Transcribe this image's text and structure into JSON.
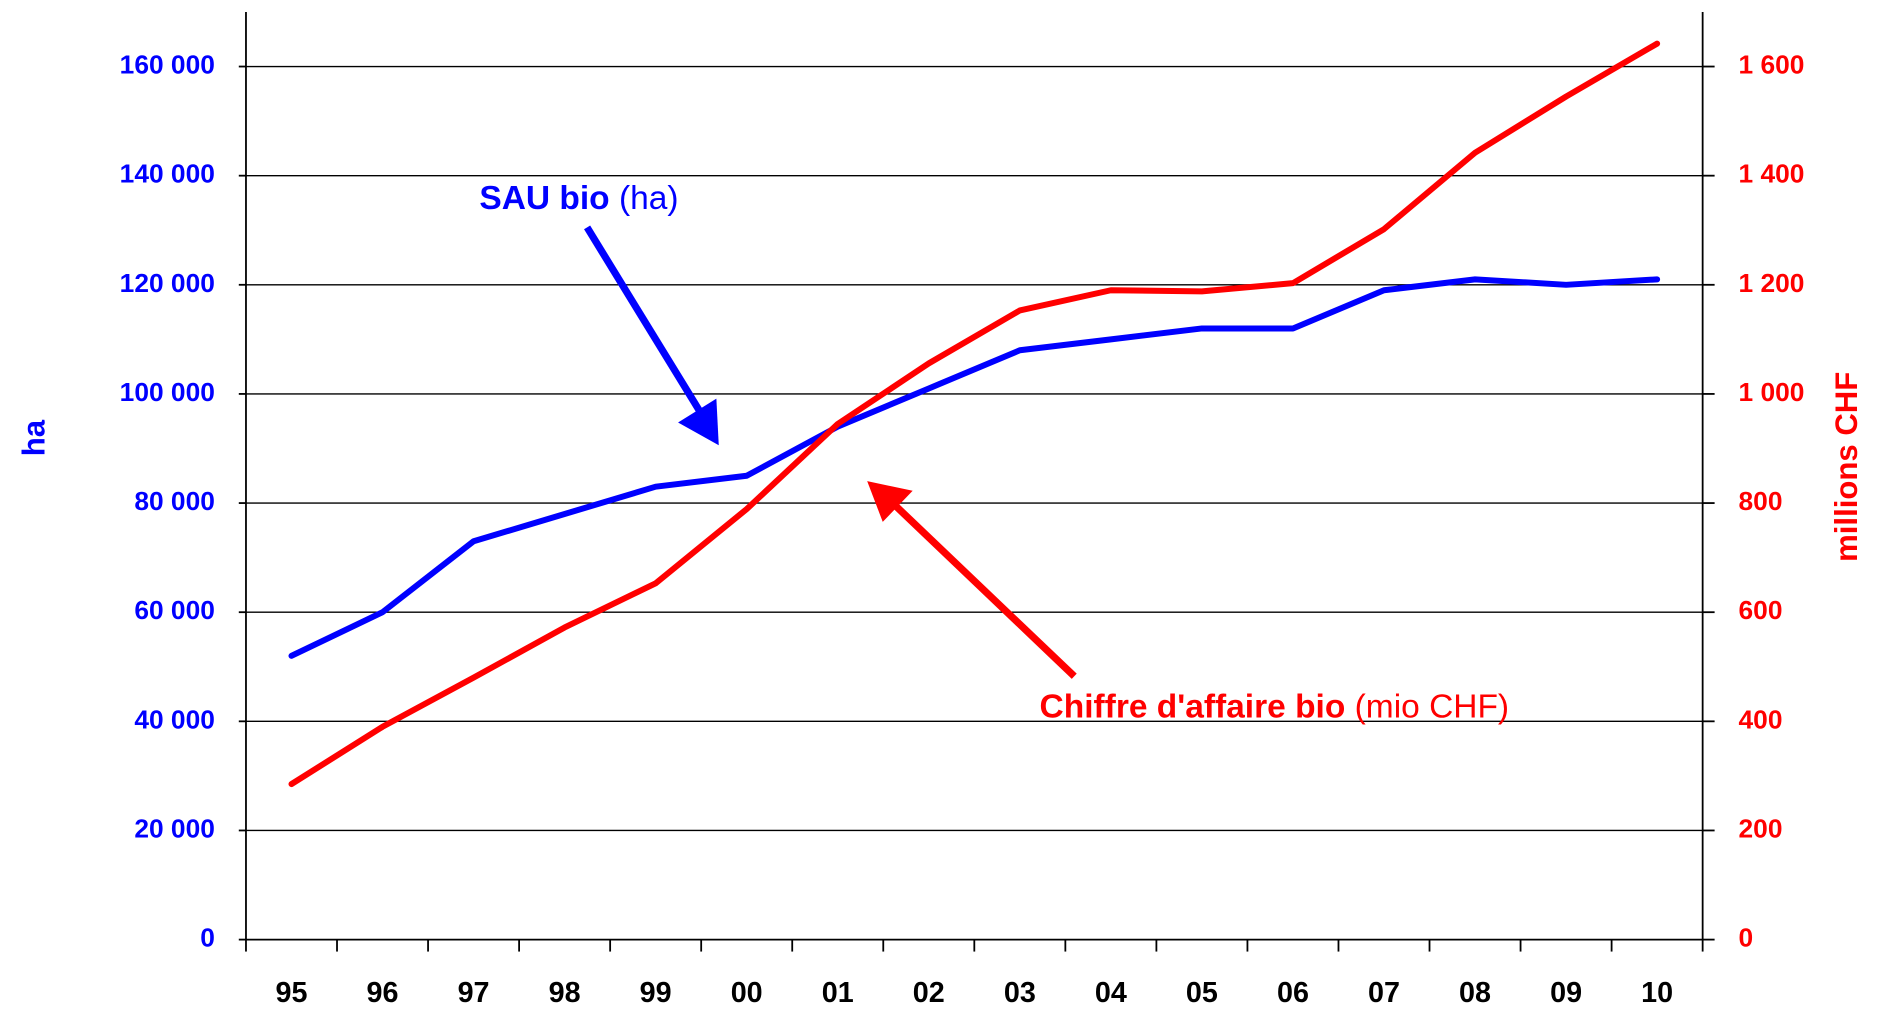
{
  "chart_data": {
    "type": "line",
    "categories": [
      "95",
      "96",
      "97",
      "98",
      "99",
      "00",
      "01",
      "02",
      "03",
      "04",
      "05",
      "06",
      "07",
      "08",
      "09",
      "10"
    ],
    "series": [
      {
        "name": "SAU bio",
        "color": "#0000ff",
        "values": [
          52000,
          60000,
          73000,
          78000,
          83000,
          85000,
          94000,
          101000,
          108000,
          110000,
          112000,
          112000,
          119000,
          121000,
          120000,
          121000
        ]
      },
      {
        "name": "Chiffre d'affaire bio",
        "color": "#ff0000",
        "axis": "y2",
        "values": [
          285,
          390,
          480,
          572,
          653,
          789,
          945,
          1056,
          1153,
          1190,
          1188,
          1203,
          1302,
          1442,
          1545,
          1642
        ]
      }
    ],
    "ylabel": "ha",
    "y2label": "millions CHF",
    "ylim": [
      0,
      170000
    ],
    "yticks": [
      0,
      {
        "value": 20000,
        "label": "20 000"
      },
      {
        "value": 40000,
        "label": "40 000"
      },
      {
        "value": 60000,
        "label": "60 000"
      },
      {
        "value": 80000,
        "label": "80 000"
      },
      {
        "value": 100000,
        "label": "100 000"
      },
      {
        "value": 120000,
        "label": "120 000"
      },
      {
        "value": 140000,
        "label": "140 000"
      },
      {
        "value": 160000,
        "label": "160 000"
      }
    ],
    "y2lim": [
      0,
      1700
    ],
    "y2ticks": [
      0,
      200,
      400,
      600,
      800,
      {
        "value": 1000,
        "label": "1 000"
      },
      {
        "value": 1200,
        "label": "1 200"
      },
      {
        "value": 1400,
        "label": "1 400"
      },
      {
        "value": 1600,
        "label": "1 600"
      }
    ],
    "grid": true,
    "annotations": [
      {
        "bold": "SAU bio",
        "normal": "(ha)"
      },
      {
        "bold": "Chiffre d'affaire bio",
        "normal": "(mio CHF)"
      }
    ]
  }
}
